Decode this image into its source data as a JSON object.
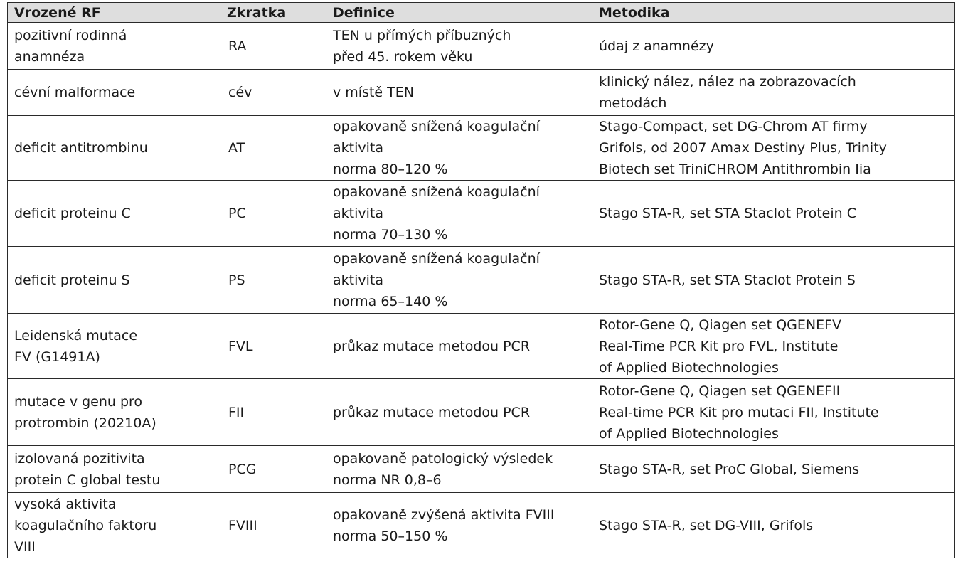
{
  "headers": [
    "Vrozené RF",
    "Zkratka",
    "Definice",
    "Metodika"
  ],
  "rows": [
    {
      "rf": [
        "pozitivní rodinná",
        "anamnéza"
      ],
      "abbr": "RA",
      "definition": [
        "TEN u přímých příbuzných",
        "před 45. rokem věku"
      ],
      "method": [
        "údaj z anamnézy"
      ]
    },
    {
      "rf": [
        "cévní malformace"
      ],
      "abbr": "cév",
      "definition": [
        "v místě TEN"
      ],
      "method": [
        "klinický nález, nález na zobrazovacích",
        "metodách"
      ]
    },
    {
      "rf": [
        "deficit antitrombinu"
      ],
      "abbr": "AT",
      "definition": [
        "opakovaně snížená koagulační",
        "aktivita",
        "norma 80–120 %"
      ],
      "method": [
        "Stago-Compact, set DG-Chrom AT firmy",
        "Grifols, od 2007 Amax Destiny Plus, Trinity",
        "Biotech set TriniCHROM Antithrombin Iia"
      ]
    },
    {
      "rf": [
        "deficit proteinu C"
      ],
      "abbr": "PC",
      "definition": [
        "opakovaně snížená koagulační",
        "aktivita",
        "norma 70–130 %"
      ],
      "method": [
        "Stago STA-R, set STA Staclot Protein C"
      ]
    },
    {
      "rf": [
        "deficit proteinu S"
      ],
      "abbr": "PS",
      "definition": [
        "opakovaně snížená koagulační",
        "aktivita",
        "norma 65–140 %"
      ],
      "method": [
        "Stago STA-R, set STA Staclot Protein S"
      ]
    },
    {
      "rf": [
        "Leidenská mutace",
        "FV (G1491A)"
      ],
      "abbr": "FVL",
      "definition": [
        "průkaz mutace metodou PCR"
      ],
      "method": [
        "Rotor-Gene Q, Qiagen set QGENEFV",
        "Real-Time PCR Kit pro FVL, Institute",
        "of Applied Biotechnologies"
      ]
    },
    {
      "rf": [
        "mutace v genu pro",
        "protrombin (20210A)"
      ],
      "abbr": "FII",
      "definition": [
        "průkaz mutace metodou PCR"
      ],
      "method": [
        "Rotor-Gene Q, Qiagen set QGENEFII",
        "Real-time PCR Kit pro mutaci FII, Institute",
        "of Applied Biotechnologies"
      ]
    },
    {
      "rf": [
        "izolovaná pozitivita",
        "protein C global testu"
      ],
      "abbr": "PCG",
      "definition": [
        "opakovaně patologický výsledek",
        "norma NR 0,8–6"
      ],
      "method": [
        "Stago STA-R, set ProC Global, Siemens"
      ]
    },
    {
      "rf": [
        "vysoká aktivita",
        "koagulačního faktoru",
        "VIII"
      ],
      "abbr": "FVIII",
      "definition": [
        "opakovaně zvýšená aktivita FVIII",
        "norma 50–150 %"
      ],
      "method": [
        "Stago STA-R, set DG-VIII, Grifols"
      ]
    }
  ]
}
